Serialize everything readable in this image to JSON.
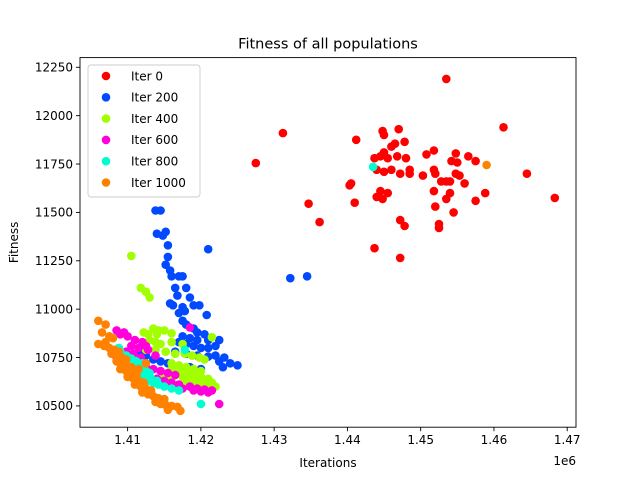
{
  "chart_data": {
    "type": "scatter",
    "title": "Fitness of all populations",
    "xlabel": "Iterations",
    "ylabel": "Fitness",
    "x_offset_label": "1e6",
    "xlim": [
      1.4035,
      1.4712
    ],
    "ylim": [
      10390,
      12300
    ],
    "x_ticks": [
      {
        "value": 1.41,
        "label": "1.41"
      },
      {
        "value": 1.42,
        "label": "1.42"
      },
      {
        "value": 1.43,
        "label": "1.43"
      },
      {
        "value": 1.44,
        "label": "1.44"
      },
      {
        "value": 1.45,
        "label": "1.45"
      },
      {
        "value": 1.46,
        "label": "1.46"
      },
      {
        "value": 1.47,
        "label": "1.47"
      }
    ],
    "y_ticks": [
      {
        "value": 10500,
        "label": "10500"
      },
      {
        "value": 10750,
        "label": "10750"
      },
      {
        "value": 11000,
        "label": "11000"
      },
      {
        "value": 11250,
        "label": "11250"
      },
      {
        "value": 11500,
        "label": "11500"
      },
      {
        "value": 11750,
        "label": "11750"
      },
      {
        "value": 12000,
        "label": "12000"
      },
      {
        "value": 12250,
        "label": "12250"
      }
    ],
    "grid": false,
    "legend": "top-left",
    "series": [
      {
        "name": "Iter 0",
        "color": "#ff0000",
        "points": [
          [
            1.4535,
            12190
          ],
          [
            1.4613,
            11940
          ],
          [
            1.4312,
            11910
          ],
          [
            1.4448,
            11920
          ],
          [
            1.445,
            11900
          ],
          [
            1.447,
            11930
          ],
          [
            1.4412,
            11875
          ],
          [
            1.4275,
            11755
          ],
          [
            1.4465,
            11855
          ],
          [
            1.4478,
            11865
          ],
          [
            1.446,
            11840
          ],
          [
            1.445,
            11810
          ],
          [
            1.4445,
            11790
          ],
          [
            1.4437,
            11780
          ],
          [
            1.4455,
            11780
          ],
          [
            1.4468,
            11790
          ],
          [
            1.448,
            11780
          ],
          [
            1.4508,
            11800
          ],
          [
            1.4518,
            11820
          ],
          [
            1.4548,
            11805
          ],
          [
            1.4565,
            11790
          ],
          [
            1.4542,
            11765
          ],
          [
            1.455,
            11758
          ],
          [
            1.4575,
            11765
          ],
          [
            1.4645,
            11700
          ],
          [
            1.4683,
            11575
          ],
          [
            1.4588,
            11600
          ],
          [
            1.4575,
            11560
          ],
          [
            1.456,
            11650
          ],
          [
            1.4535,
            11660
          ],
          [
            1.4548,
            11700
          ],
          [
            1.4553,
            11690
          ],
          [
            1.454,
            11660
          ],
          [
            1.452,
            11700
          ],
          [
            1.4518,
            11720
          ],
          [
            1.4503,
            11690
          ],
          [
            1.4485,
            11700
          ],
          [
            1.4472,
            11700
          ],
          [
            1.446,
            11720
          ],
          [
            1.445,
            11710
          ],
          [
            1.444,
            11720
          ],
          [
            1.444,
            11580
          ],
          [
            1.4445,
            11610
          ],
          [
            1.4448,
            11570
          ],
          [
            1.4455,
            11600
          ],
          [
            1.4518,
            11610
          ],
          [
            1.454,
            11600
          ],
          [
            1.4535,
            11570
          ],
          [
            1.452,
            11530
          ],
          [
            1.4545,
            11500
          ],
          [
            1.4525,
            11440
          ],
          [
            1.4525,
            11420
          ],
          [
            1.4472,
            11460
          ],
          [
            1.4478,
            11430
          ],
          [
            1.4437,
            11315
          ],
          [
            1.4472,
            11265
          ],
          [
            1.4403,
            11640
          ],
          [
            1.4405,
            11650
          ],
          [
            1.441,
            11550
          ],
          [
            1.4347,
            11545
          ],
          [
            1.4362,
            11450
          ],
          [
            1.4485,
            11720
          ],
          [
            1.4528,
            11660
          ]
        ]
      },
      {
        "name": "Iter 200",
        "color": "#0049ff",
        "points": [
          [
            1.4138,
            11510
          ],
          [
            1.4145,
            11510
          ],
          [
            1.414,
            11390
          ],
          [
            1.4148,
            11380
          ],
          [
            1.4152,
            11400
          ],
          [
            1.4155,
            11330
          ],
          [
            1.421,
            11310
          ],
          [
            1.4155,
            11270
          ],
          [
            1.4152,
            11230
          ],
          [
            1.4158,
            11200
          ],
          [
            1.416,
            11170
          ],
          [
            1.417,
            11170
          ],
          [
            1.4175,
            11170
          ],
          [
            1.4165,
            11110
          ],
          [
            1.418,
            11110
          ],
          [
            1.4168,
            11070
          ],
          [
            1.4185,
            11060
          ],
          [
            1.4158,
            11030
          ],
          [
            1.4162,
            11020
          ],
          [
            1.4175,
            11010
          ],
          [
            1.419,
            11020
          ],
          [
            1.4198,
            11020
          ],
          [
            1.417,
            10980
          ],
          [
            1.4178,
            10990
          ],
          [
            1.4208,
            10970
          ],
          [
            1.4175,
            10940
          ],
          [
            1.418,
            10920
          ],
          [
            1.419,
            10900
          ],
          [
            1.4195,
            10880
          ],
          [
            1.4205,
            10870
          ],
          [
            1.4175,
            10860
          ],
          [
            1.4185,
            10850
          ],
          [
            1.4195,
            10840
          ],
          [
            1.421,
            10840
          ],
          [
            1.4225,
            10840
          ],
          [
            1.417,
            10830
          ],
          [
            1.418,
            10820
          ],
          [
            1.419,
            10810
          ],
          [
            1.42,
            10800
          ],
          [
            1.421,
            10800
          ],
          [
            1.422,
            10810
          ],
          [
            1.4165,
            10780
          ],
          [
            1.418,
            10770
          ],
          [
            1.4195,
            10760
          ],
          [
            1.421,
            10755
          ],
          [
            1.422,
            10760
          ],
          [
            1.4232,
            10750
          ],
          [
            1.4225,
            10730
          ],
          [
            1.424,
            10720
          ],
          [
            1.425,
            10710
          ],
          [
            1.423,
            10700
          ],
          [
            1.42,
            10690
          ],
          [
            1.4185,
            10700
          ],
          [
            1.417,
            10705
          ],
          [
            1.4155,
            10720
          ],
          [
            1.4145,
            10730
          ],
          [
            1.4135,
            10740
          ],
          [
            1.4125,
            10760
          ],
          [
            1.412,
            10770
          ],
          [
            1.4115,
            10780
          ],
          [
            1.4322,
            11160
          ],
          [
            1.4345,
            11170
          ]
        ]
      },
      {
        "name": "Iter 400",
        "color": "#a2ff00",
        "points": [
          [
            1.4105,
            11275
          ],
          [
            1.4118,
            11110
          ],
          [
            1.4125,
            11090
          ],
          [
            1.413,
            11060
          ],
          [
            1.4135,
            10900
          ],
          [
            1.4142,
            10890
          ],
          [
            1.415,
            10890
          ],
          [
            1.414,
            10870
          ],
          [
            1.4122,
            10880
          ],
          [
            1.4128,
            10870
          ],
          [
            1.416,
            10875
          ],
          [
            1.413,
            10840
          ],
          [
            1.4138,
            10830
          ],
          [
            1.4145,
            10820
          ],
          [
            1.416,
            10830
          ],
          [
            1.4175,
            10820
          ],
          [
            1.4125,
            10790
          ],
          [
            1.4138,
            10790
          ],
          [
            1.4152,
            10780
          ],
          [
            1.4165,
            10770
          ],
          [
            1.4178,
            10770
          ],
          [
            1.4188,
            10760
          ],
          [
            1.4198,
            10750
          ],
          [
            1.4215,
            10855
          ],
          [
            1.4205,
            10740
          ],
          [
            1.416,
            10720
          ],
          [
            1.417,
            10710
          ],
          [
            1.418,
            10700
          ],
          [
            1.419,
            10690
          ],
          [
            1.42,
            10680
          ],
          [
            1.416,
            10690
          ],
          [
            1.417,
            10680
          ],
          [
            1.418,
            10670
          ],
          [
            1.419,
            10660
          ],
          [
            1.42,
            10650
          ],
          [
            1.421,
            10640
          ],
          [
            1.4165,
            10660
          ],
          [
            1.4175,
            10650
          ],
          [
            1.4185,
            10640
          ],
          [
            1.4195,
            10630
          ],
          [
            1.4205,
            10625
          ],
          [
            1.4215,
            10620
          ],
          [
            1.415,
            10650
          ],
          [
            1.416,
            10640
          ],
          [
            1.418,
            10620
          ],
          [
            1.419,
            10610
          ],
          [
            1.42,
            10605
          ],
          [
            1.421,
            10600
          ],
          [
            1.422,
            10600
          ]
        ]
      },
      {
        "name": "Iter 600",
        "color": "#ff00dc",
        "points": [
          [
            1.4085,
            10890
          ],
          [
            1.4095,
            10880
          ],
          [
            1.41,
            10860
          ],
          [
            1.409,
            10870
          ],
          [
            1.411,
            10840
          ],
          [
            1.412,
            10830
          ],
          [
            1.4125,
            10810
          ],
          [
            1.4105,
            10810
          ],
          [
            1.4115,
            10800
          ],
          [
            1.4128,
            10790
          ],
          [
            1.4138,
            10760
          ],
          [
            1.4098,
            10780
          ],
          [
            1.4108,
            10770
          ],
          [
            1.4118,
            10750
          ],
          [
            1.4085,
            10750
          ],
          [
            1.4095,
            10740
          ],
          [
            1.4105,
            10720
          ],
          [
            1.4115,
            10710
          ],
          [
            1.4125,
            10700
          ],
          [
            1.4135,
            10690
          ],
          [
            1.4145,
            10680
          ],
          [
            1.4155,
            10670
          ],
          [
            1.4165,
            10660
          ],
          [
            1.414,
            10640
          ],
          [
            1.415,
            10630
          ],
          [
            1.416,
            10620
          ],
          [
            1.417,
            10610
          ],
          [
            1.4185,
            10600
          ],
          [
            1.4195,
            10590
          ],
          [
            1.4205,
            10585
          ],
          [
            1.4215,
            10580
          ],
          [
            1.4175,
            10590
          ],
          [
            1.419,
            10580
          ],
          [
            1.42,
            10575
          ],
          [
            1.421,
            10570
          ],
          [
            1.4225,
            10510
          ],
          [
            1.4185,
            10905
          ],
          [
            1.4148,
            10610
          ],
          [
            1.4135,
            10620
          ]
        ]
      },
      {
        "name": "Iter 800",
        "color": "#00ffd0",
        "points": [
          [
            1.4435,
            11735
          ],
          [
            1.4088,
            10800
          ],
          [
            1.409,
            10780
          ],
          [
            1.4098,
            10760
          ],
          [
            1.4105,
            10745
          ],
          [
            1.4112,
            10730
          ],
          [
            1.412,
            10720
          ],
          [
            1.4095,
            10730
          ],
          [
            1.4102,
            10715
          ],
          [
            1.411,
            10700
          ],
          [
            1.4118,
            10690
          ],
          [
            1.4125,
            10680
          ],
          [
            1.413,
            10670
          ],
          [
            1.411,
            10670
          ],
          [
            1.4118,
            10660
          ],
          [
            1.4125,
            10650
          ],
          [
            1.4132,
            10640
          ],
          [
            1.414,
            10630
          ],
          [
            1.412,
            10640
          ],
          [
            1.4128,
            10630
          ],
          [
            1.4135,
            10620
          ],
          [
            1.4142,
            10610
          ],
          [
            1.415,
            10600
          ],
          [
            1.416,
            10590
          ],
          [
            1.417,
            10580
          ],
          [
            1.4178,
            10790
          ],
          [
            1.42,
            10510
          ],
          [
            1.4105,
            10700
          ]
        ]
      },
      {
        "name": "Iter 1000",
        "color": "#ff8100",
        "points": [
          [
            1.459,
            11745
          ],
          [
            1.406,
            10940
          ],
          [
            1.407,
            10920
          ],
          [
            1.4065,
            10880
          ],
          [
            1.4075,
            10860
          ],
          [
            1.408,
            10850
          ],
          [
            1.407,
            10830
          ],
          [
            1.406,
            10820
          ],
          [
            1.4068,
            10810
          ],
          [
            1.4075,
            10800
          ],
          [
            1.4082,
            10790
          ],
          [
            1.4088,
            10780
          ],
          [
            1.4078,
            10770
          ],
          [
            1.4085,
            10760
          ],
          [
            1.4092,
            10750
          ],
          [
            1.4098,
            10740
          ],
          [
            1.4085,
            10730
          ],
          [
            1.409,
            10720
          ],
          [
            1.4098,
            10710
          ],
          [
            1.4105,
            10700
          ],
          [
            1.409,
            10690
          ],
          [
            1.4098,
            10680
          ],
          [
            1.4105,
            10670
          ],
          [
            1.4112,
            10660
          ],
          [
            1.41,
            10650
          ],
          [
            1.4108,
            10640
          ],
          [
            1.4115,
            10630
          ],
          [
            1.4122,
            10620
          ],
          [
            1.411,
            10610
          ],
          [
            1.4118,
            10600
          ],
          [
            1.4125,
            10590
          ],
          [
            1.4132,
            10580
          ],
          [
            1.412,
            10570
          ],
          [
            1.4128,
            10560
          ],
          [
            1.4135,
            10550
          ],
          [
            1.4142,
            10540
          ],
          [
            1.415,
            10535
          ],
          [
            1.4138,
            10520
          ],
          [
            1.4145,
            10510
          ],
          [
            1.4152,
            10505
          ],
          [
            1.416,
            10500
          ],
          [
            1.4168,
            10495
          ],
          [
            1.4155,
            10480
          ],
          [
            1.4172,
            10475
          ],
          [
            1.4115,
            10690
          ],
          [
            1.4125,
            10720
          ]
        ]
      }
    ]
  }
}
